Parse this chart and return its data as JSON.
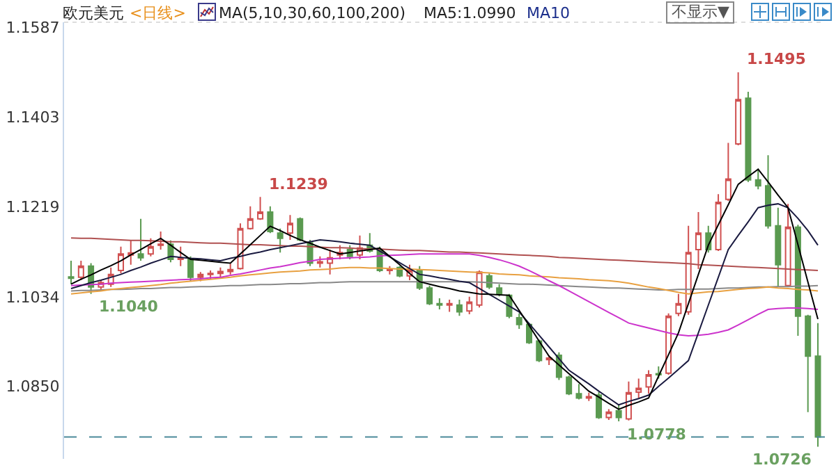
{
  "chart_data": {
    "type": "candlestick",
    "title": "欧元美元",
    "annotations": [
      "<日线>",
      "MA(5,10,30,60,100,200)",
      "MA5:1.0990",
      "MA10",
      "不显示▼",
      "1.1239",
      "1.1040",
      "1.1495",
      "1.0778",
      "1.0726"
    ],
    "categories": [
      null,
      null,
      null,
      null,
      null,
      null,
      null,
      null,
      null,
      null,
      null,
      null,
      null,
      null,
      null,
      null,
      null,
      null,
      null,
      null,
      null,
      null,
      null,
      null,
      null,
      null,
      null,
      null,
      null,
      null,
      null,
      null,
      null,
      null,
      null,
      null,
      null,
      null,
      null,
      null,
      null,
      null,
      null,
      null,
      null,
      null,
      null,
      null,
      null,
      null,
      null,
      null,
      null,
      null,
      null,
      null,
      null,
      null,
      null,
      null,
      null,
      null,
      null,
      null,
      null,
      null,
      null,
      null,
      null,
      null,
      null,
      null,
      null,
      null,
      null,
      null
    ],
    "ohlc": [
      [
        1.1075,
        1.1108,
        1.106,
        1.1072
      ],
      [
        1.1074,
        1.1108,
        1.1068,
        1.1097
      ],
      [
        1.1097,
        1.1103,
        1.104,
        1.1054
      ],
      [
        1.1054,
        1.1068,
        1.1046,
        1.1063
      ],
      [
        1.106,
        1.1094,
        1.1054,
        1.108
      ],
      [
        1.1088,
        1.1137,
        1.1082,
        1.1122
      ],
      [
        1.112,
        1.115,
        1.11,
        1.1124
      ],
      [
        1.1122,
        1.1194,
        1.1108,
        1.1114
      ],
      [
        1.1122,
        1.1154,
        1.1117,
        1.1137
      ],
      [
        1.114,
        1.1168,
        1.1131,
        1.1142
      ],
      [
        1.1142,
        1.115,
        1.1105,
        1.1111
      ],
      [
        1.1111,
        1.1137,
        1.1097,
        1.1113
      ],
      [
        1.1111,
        1.1117,
        1.1066,
        1.1074
      ],
      [
        1.1074,
        1.1085,
        1.1066,
        1.108
      ],
      [
        1.108,
        1.1088,
        1.107,
        1.1082
      ],
      [
        1.1082,
        1.1094,
        1.1074,
        1.1086
      ],
      [
        1.1086,
        1.1102,
        1.108,
        1.109
      ],
      [
        1.1092,
        1.1185,
        1.109,
        1.1174
      ],
      [
        1.1174,
        1.122,
        1.1172,
        1.1194
      ],
      [
        1.1194,
        1.1239,
        1.1192,
        1.1208
      ],
      [
        1.1208,
        1.122,
        1.1165,
        1.1168
      ],
      [
        1.1165,
        1.1174,
        1.1125,
        1.1154
      ],
      [
        1.1165,
        1.1202,
        1.1151,
        1.1185
      ],
      [
        1.1194,
        1.1197,
        1.1148,
        1.1151
      ],
      [
        1.1145,
        1.1151,
        1.1097,
        1.1103
      ],
      [
        1.1103,
        1.1117,
        1.1094,
        1.1106
      ],
      [
        1.1103,
        1.1131,
        1.108,
        1.1114
      ],
      [
        1.112,
        1.114,
        1.1111,
        1.1125
      ],
      [
        1.1131,
        1.114,
        1.1111,
        1.1117
      ],
      [
        1.112,
        1.116,
        1.1111,
        1.1134
      ],
      [
        1.114,
        1.1165,
        1.1125,
        1.1128
      ],
      [
        1.1131,
        1.1137,
        1.1085,
        1.1088
      ],
      [
        1.1088,
        1.1097,
        1.108,
        1.1091
      ],
      [
        1.1094,
        1.1097,
        1.1074,
        1.1077
      ],
      [
        1.1077,
        1.11,
        1.1068,
        1.1088
      ],
      [
        1.1088,
        1.1097,
        1.1048,
        1.1052
      ],
      [
        1.1052,
        1.1057,
        1.1017,
        1.102
      ],
      [
        1.102,
        1.1031,
        1.1008,
        1.1017
      ],
      [
        1.1017,
        1.1028,
        1.1003,
        1.102
      ],
      [
        1.1017,
        1.1028,
        1.0995,
        1.1003
      ],
      [
        1.1005,
        1.1034,
        1.0998,
        1.1023
      ],
      [
        1.1017,
        1.1088,
        1.1012,
        1.1085
      ],
      [
        1.1077,
        1.1082,
        1.105,
        1.1054
      ],
      [
        1.1052,
        1.106,
        1.1035,
        1.104
      ],
      [
        1.1037,
        1.104,
        1.099,
        1.0994
      ],
      [
        1.0991,
        1.1,
        1.0968,
        1.0977
      ],
      [
        1.0977,
        1.098,
        1.0937,
        1.094
      ],
      [
        1.0943,
        1.0946,
        1.09,
        1.0903
      ],
      [
        1.0905,
        1.0914,
        1.0894,
        1.0908
      ],
      [
        1.0914,
        1.092,
        1.0863,
        1.0869
      ],
      [
        1.0869,
        1.0872,
        1.0832,
        1.0835
      ],
      [
        1.0835,
        1.0855,
        1.0823,
        1.0826
      ],
      [
        1.0826,
        1.0837,
        1.082,
        1.0829
      ],
      [
        1.0832,
        1.0838,
        1.0783,
        1.0786
      ],
      [
        1.0786,
        1.0803,
        1.0781,
        1.0797
      ],
      [
        1.08,
        1.0812,
        1.0778,
        1.0786
      ],
      [
        1.0783,
        1.086,
        1.078,
        1.0837
      ],
      [
        1.0838,
        1.0866,
        1.0826,
        1.0846
      ],
      [
        1.0849,
        1.0883,
        1.0835,
        1.0874
      ],
      [
        1.0876,
        1.0891,
        1.0866,
        1.0874
      ],
      [
        1.0877,
        1.1,
        1.0874,
        1.0994
      ],
      [
        1.1,
        1.104,
        1.0994,
        1.102
      ],
      [
        1.1003,
        1.118,
        1.0997,
        1.1125
      ],
      [
        1.1131,
        1.1208,
        1.1091,
        1.1165
      ],
      [
        1.1165,
        1.118,
        1.1125,
        1.1131
      ],
      [
        1.1131,
        1.1245,
        1.1128,
        1.1228
      ],
      [
        1.1234,
        1.135,
        1.1231,
        1.1276
      ],
      [
        1.1348,
        1.1495,
        1.1345,
        1.1439
      ],
      [
        1.1442,
        1.1455,
        1.127,
        1.1274
      ],
      [
        1.1274,
        1.1297,
        1.1255,
        1.1262
      ],
      [
        1.1262,
        1.1325,
        1.1174,
        1.118
      ],
      [
        1.118,
        1.1217,
        1.1054,
        1.11
      ],
      [
        1.1057,
        1.1225,
        1.1054,
        1.1177
      ],
      [
        1.1177,
        1.1182,
        1.0954,
        1.0994
      ],
      [
        1.0994,
        1.0997,
        1.0797,
        1.0912
      ],
      [
        1.0912,
        1.098,
        1.0726,
        1.0746
      ]
    ],
    "series": [
      {
        "type": "line",
        "color": "#b05050",
        "values": [
          1.1155,
          1.1154,
          1.1154,
          1.1153,
          1.1152,
          1.1151,
          1.115,
          1.115,
          1.1149,
          1.1148,
          1.1147,
          1.1147,
          1.1146,
          1.1145,
          1.1144,
          1.1144,
          1.1143,
          1.1142,
          1.1141,
          1.1141,
          1.114,
          1.1139,
          1.1138,
          1.1138,
          1.1137,
          1.1136,
          1.1135,
          1.1135,
          1.1134,
          1.1133,
          1.1132,
          1.1132,
          1.1131,
          1.113,
          1.1129,
          1.1129,
          1.1128,
          1.1127,
          1.1126,
          1.1126,
          1.1125,
          1.1124,
          1.1123,
          1.1122,
          1.1121,
          1.112,
          1.1119,
          1.1118,
          1.1117,
          1.1115,
          1.1114,
          1.1113,
          1.1112,
          1.1111,
          1.111,
          1.1109,
          1.1108,
          1.1107,
          1.1106,
          1.1105,
          1.1104,
          1.1103,
          1.1102,
          1.11,
          1.1099,
          1.1098,
          1.1097,
          1.1096,
          1.1095,
          1.1094,
          1.1093,
          1.1092,
          1.1091,
          1.109,
          1.1089,
          1.1088
        ]
      },
      {
        "type": "line",
        "color": "#888888",
        "values": [
          1.1046,
          1.1047,
          1.1047,
          1.1048,
          1.1049,
          1.1049,
          1.105,
          1.1051,
          1.1051,
          1.1052,
          1.1053,
          1.1053,
          1.1054,
          1.1055,
          1.1055,
          1.1056,
          1.1057,
          1.1057,
          1.1058,
          1.1059,
          1.1059,
          1.106,
          1.1061,
          1.1061,
          1.1062,
          1.1063,
          1.1063,
          1.1064,
          1.1065,
          1.1065,
          1.1065,
          1.1065,
          1.1065,
          1.1065,
          1.1065,
          1.1065,
          1.1065,
          1.1065,
          1.1065,
          1.1065,
          1.1065,
          1.1064,
          1.1063,
          1.1062,
          1.1061,
          1.106,
          1.106,
          1.1059,
          1.1058,
          1.1057,
          1.1056,
          1.1055,
          1.1054,
          1.1053,
          1.1052,
          1.1052,
          1.1051,
          1.105,
          1.1049,
          1.1048,
          1.1048,
          1.1049,
          1.1049,
          1.105,
          1.105,
          1.1051,
          1.1052,
          1.1052,
          1.1053,
          1.1054,
          1.1054,
          1.1055,
          1.1055,
          1.1056,
          1.1056,
          1.1057
        ]
      },
      {
        "type": "line",
        "color": "#e8a040",
        "values": [
          1.104,
          1.1042,
          1.1044,
          1.1046,
          1.1049,
          1.1051,
          1.1053,
          1.1055,
          1.1057,
          1.1059,
          1.1062,
          1.1064,
          1.1066,
          1.1068,
          1.107,
          1.1072,
          1.1074,
          1.1077,
          1.1079,
          1.1081,
          1.1083,
          1.1085,
          1.1086,
          1.1087,
          1.1089,
          1.109,
          1.1091,
          1.1093,
          1.1094,
          1.1094,
          1.1093,
          1.1093,
          1.1092,
          1.1091,
          1.1091,
          1.109,
          1.1089,
          1.1088,
          1.1087,
          1.1086,
          1.1085,
          1.1084,
          1.1083,
          1.1081,
          1.108,
          1.1079,
          1.1077,
          1.1076,
          1.1075,
          1.1073,
          1.1072,
          1.1071,
          1.1069,
          1.1068,
          1.1067,
          1.1065,
          1.1062,
          1.1058,
          1.1054,
          1.1051,
          1.1047,
          1.1043,
          1.104,
          1.1042,
          1.1044,
          1.1045,
          1.1047,
          1.1049,
          1.1051,
          1.1052,
          1.1054,
          1.1052,
          1.1051,
          1.1049,
          1.1048,
          1.1046
        ]
      },
      {
        "type": "line",
        "color": "#cc33cc",
        "values": [
          1.1057,
          1.1058,
          1.1059,
          1.106,
          1.1062,
          1.1063,
          1.1064,
          1.1065,
          1.1066,
          1.1067,
          1.1068,
          1.1069,
          1.107,
          1.1071,
          1.1073,
          1.1074,
          1.1078,
          1.1081,
          1.1085,
          1.1089,
          1.1093,
          1.1096,
          1.11,
          1.1104,
          1.1107,
          1.1111,
          1.1112,
          1.1113,
          1.1114,
          1.1115,
          1.1116,
          1.1118,
          1.1119,
          1.112,
          1.1121,
          1.1122,
          1.1122,
          1.1122,
          1.1122,
          1.1122,
          1.1122,
          1.1119,
          1.1115,
          1.111,
          1.1104,
          1.1097,
          1.1088,
          1.1078,
          1.1067,
          1.1057,
          1.1046,
          1.1035,
          1.1024,
          1.1013,
          1.1002,
          1.0991,
          1.098,
          1.0975,
          1.097,
          1.0965,
          1.096,
          1.0956,
          1.0954,
          1.0955,
          1.0957,
          1.0961,
          1.0966,
          1.0976,
          1.0987,
          1.0998,
          1.1008,
          1.101,
          1.1011,
          1.1011,
          1.101,
          1.1008
        ]
      },
      {
        "type": "line",
        "color": "#1a1a40",
        "values": [
          1.1051,
          1.1057,
          1.1063,
          1.1068,
          1.1074,
          1.108,
          1.1088,
          1.1095,
          1.1103,
          1.111,
          1.1117,
          1.1115,
          1.1113,
          1.1112,
          1.111,
          1.1108,
          1.1113,
          1.1117,
          1.1122,
          1.1126,
          1.1131,
          1.1135,
          1.1139,
          1.1143,
          1.1147,
          1.1151,
          1.1149,
          1.1147,
          1.1144,
          1.1142,
          1.114,
          1.1128,
          1.1116,
          1.1104,
          1.1092,
          1.108,
          1.1077,
          1.1073,
          1.107,
          1.1066,
          1.1063,
          1.1051,
          1.1039,
          1.1027,
          1.1015,
          1.1003,
          1.0979,
          1.0955,
          1.0931,
          1.0907,
          1.0883,
          1.0869,
          1.0855,
          1.084,
          1.0826,
          1.0812,
          1.0819,
          1.0825,
          1.0832,
          1.085,
          1.0867,
          1.0885,
          1.0903,
          1.096,
          1.1017,
          1.1074,
          1.1131,
          1.116,
          1.1188,
          1.1217,
          1.1222,
          1.1225,
          1.1217,
          1.1195,
          1.117,
          1.114
        ]
      },
      {
        "type": "line",
        "color": "#000000",
        "values": [
          1.106,
          1.107,
          1.1079,
          1.1089,
          1.1098,
          1.1108,
          1.112,
          1.1131,
          1.1143,
          1.1154,
          1.114,
          1.1125,
          1.1111,
          1.1109,
          1.1107,
          1.1105,
          1.1103,
          1.1122,
          1.1141,
          1.116,
          1.1179,
          1.117,
          1.116,
          1.1151,
          1.1144,
          1.1136,
          1.1129,
          1.1122,
          1.1125,
          1.1128,
          1.1131,
          1.1134,
          1.1117,
          1.11,
          1.1082,
          1.1065,
          1.106,
          1.1055,
          1.1051,
          1.1046,
          1.1043,
          1.104,
          1.1039,
          1.1038,
          1.1037,
          1.1006,
          1.0975,
          1.0943,
          1.0912,
          1.0894,
          1.0876,
          1.0858,
          1.084,
          1.0828,
          1.0815,
          1.0803,
          1.0811,
          1.0818,
          1.0826,
          1.0871,
          1.0915,
          1.096,
          1.102,
          1.108,
          1.114,
          1.1182,
          1.1223,
          1.1265,
          1.1281,
          1.1296,
          1.127,
          1.1243,
          1.1217,
          1.1141,
          1.1064,
          1.0988
        ]
      }
    ],
    "ylim": [
      1.0701,
      1.1598
    ],
    "yticks": [
      {
        "value": 1.085,
        "label": "1.0850"
      },
      1.1034,
      1.1219,
      1.1403,
      1.1587
    ],
    "ref_lines": [
      {
        "axis": "y",
        "value": 1.0746,
        "color": "#4a8a9a",
        "line_style": "dashed"
      }
    ],
    "tick_labels": "y",
    "grid": false
  }
}
